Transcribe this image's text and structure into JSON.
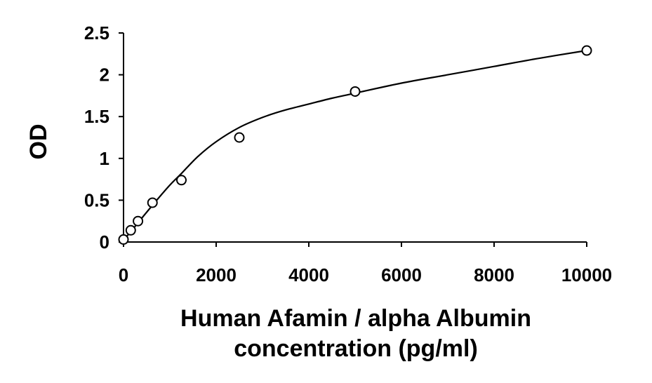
{
  "chart_data": {
    "type": "scatter",
    "title": "",
    "xlabel_lines": [
      "Human Afamin / alpha Albumin",
      "concentration (pg/ml)"
    ],
    "ylabel": "OD",
    "xlim": [
      0,
      10000
    ],
    "ylim": [
      0,
      2.5
    ],
    "xticks": [
      0,
      2000,
      4000,
      6000,
      8000,
      10000
    ],
    "yticks": [
      0,
      0.5,
      1,
      1.5,
      2,
      2.5
    ],
    "xtick_labels": [
      "0",
      "2000",
      "4000",
      "6000",
      "8000",
      "10000"
    ],
    "ytick_labels": [
      "0",
      "0.5",
      "1",
      "1.5",
      "2",
      "2.5"
    ],
    "grid": false,
    "legend": "none",
    "series": [
      {
        "x": [
          0,
          156,
          312,
          625,
          1250,
          2500,
          5000,
          10000
        ],
        "y": [
          0.03,
          0.14,
          0.25,
          0.47,
          0.74,
          1.25,
          1.8,
          2.29
        ]
      }
    ],
    "fit_curve": {
      "x": [
        0,
        156,
        312,
        625,
        1000,
        1250,
        1600,
        2000,
        2500,
        3000,
        3500,
        4000,
        4500,
        5000,
        6000,
        7000,
        8000,
        9000,
        10000
      ],
      "y": [
        0.03,
        0.12,
        0.23,
        0.44,
        0.68,
        0.82,
        1.02,
        1.2,
        1.37,
        1.49,
        1.58,
        1.65,
        1.72,
        1.78,
        1.9,
        2.0,
        2.1,
        2.2,
        2.29
      ]
    }
  }
}
